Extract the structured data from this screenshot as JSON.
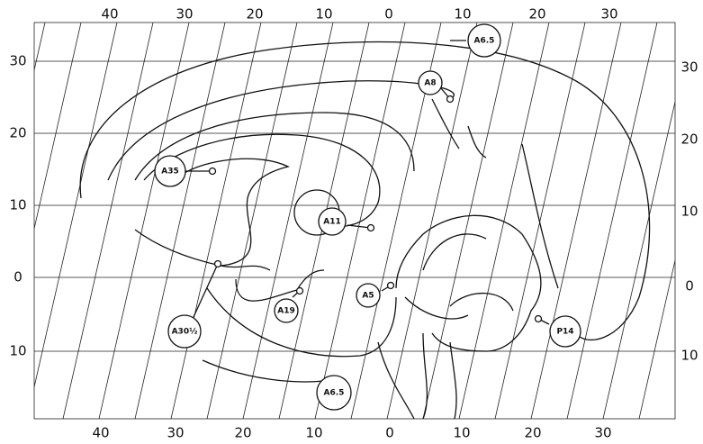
{
  "axes": {
    "top": [
      "40",
      "30",
      "20",
      "10",
      "0",
      "10",
      "20",
      "30"
    ],
    "bottom": [
      "40",
      "30",
      "20",
      "10",
      "0",
      "10",
      "20",
      "30"
    ],
    "left": [
      "30",
      "20",
      "10",
      "0",
      "10"
    ],
    "right": [
      "30",
      "20",
      "10",
      "0",
      "10"
    ]
  },
  "labels": [
    "A6.5",
    "A8",
    "A35",
    "A11",
    "A30½",
    "A19",
    "A5",
    "P14",
    "A6.5"
  ]
}
